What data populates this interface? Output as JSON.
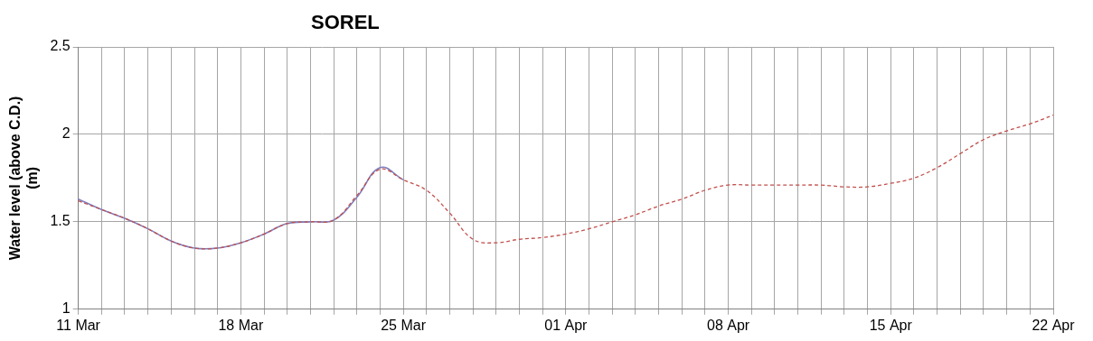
{
  "chart_data": {
    "type": "line",
    "title": "SOREL",
    "ylabel": [
      "Water level (above C.D.)",
      "(m)"
    ],
    "categories": [
      "11 Mar",
      null,
      null,
      null,
      null,
      null,
      null,
      "18 Mar",
      null,
      null,
      null,
      null,
      null,
      null,
      "25 Mar",
      null,
      null,
      null,
      null,
      null,
      null,
      "01 Apr",
      null,
      null,
      null,
      null,
      null,
      null,
      "08 Apr",
      null,
      null,
      null,
      null,
      null,
      null,
      "15 Apr",
      null,
      null,
      null,
      null,
      null,
      null,
      "22 Apr"
    ],
    "series": [
      {
        "color": "#c0504d",
        "line_style": "dashed",
        "values": [
          1.62,
          1.57,
          1.52,
          1.46,
          1.39,
          1.35,
          1.35,
          1.38,
          1.43,
          1.49,
          1.5,
          1.51,
          1.65,
          1.8,
          1.74,
          1.68,
          1.55,
          1.4,
          1.38,
          1.4,
          1.41,
          1.43,
          1.46,
          1.5,
          1.54,
          1.59,
          1.63,
          1.68,
          1.71,
          1.71,
          1.71,
          1.71,
          1.71,
          1.7,
          1.7,
          1.72,
          1.75,
          1.81,
          1.89,
          1.97,
          2.02,
          2.06,
          2.11
        ]
      },
      {
        "color": "#7f7fc0",
        "line_style": "solid",
        "values": [
          1.63,
          1.57,
          1.52,
          1.46,
          1.39,
          1.35,
          1.35,
          1.38,
          1.43,
          1.49,
          1.5,
          1.51,
          1.64,
          1.81,
          1.74,
          null,
          null,
          null,
          null,
          null,
          null,
          null,
          null,
          null,
          null,
          null,
          null,
          null,
          null,
          null,
          null,
          null,
          null,
          null,
          null,
          null,
          null,
          null,
          null,
          null,
          null,
          null,
          null
        ]
      }
    ],
    "ylim": [
      1,
      2.5
    ],
    "yticks": [
      1,
      1.5,
      2,
      2.5
    ],
    "grid": true
  }
}
